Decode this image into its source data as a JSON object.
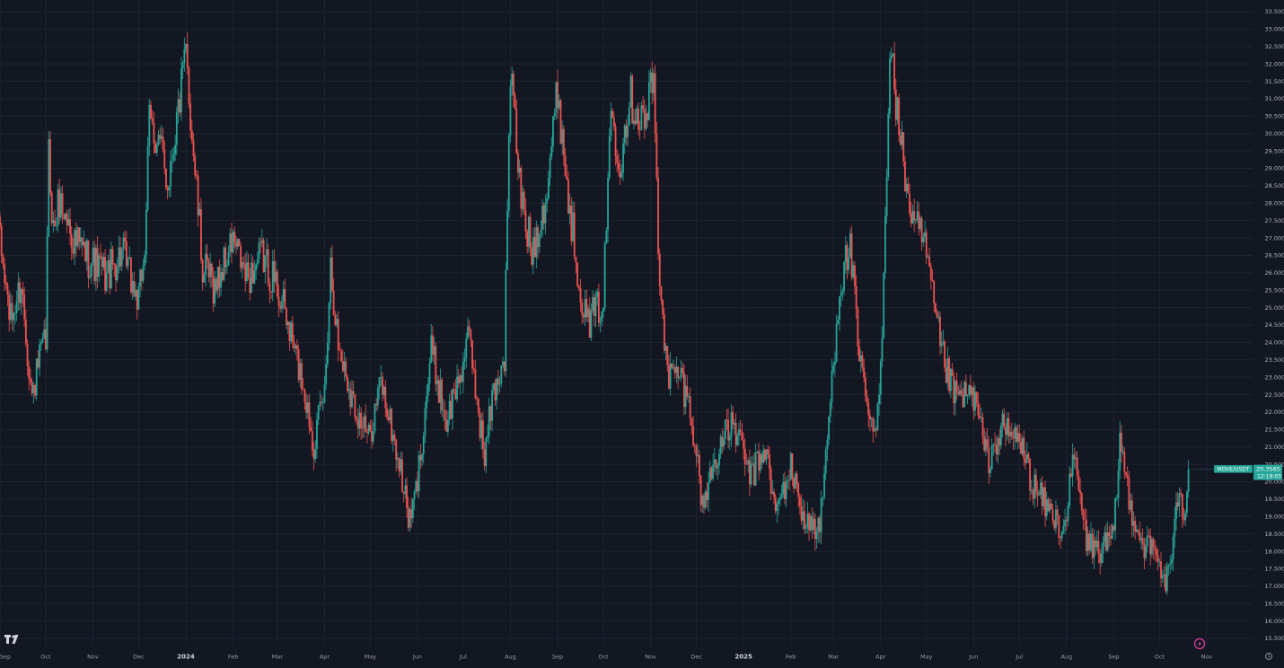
{
  "chart_data": {
    "type": "candlestick",
    "symbol": "MOVE/USDT",
    "last_price": "20.3565",
    "countdown": "12:19:03",
    "ylim": [
      15.5,
      33.5
    ],
    "y_ticks": [
      "15.5000",
      "16.0000",
      "16.5000",
      "17.0000",
      "17.5000",
      "18.0000",
      "18.5000",
      "19.0000",
      "19.5000",
      "20.0000",
      "20.5000",
      "21.0000",
      "21.5000",
      "22.0000",
      "22.5000",
      "23.0000",
      "23.5000",
      "24.0000",
      "24.5000",
      "25.0000",
      "25.5000",
      "26.0000",
      "26.5000",
      "27.0000",
      "27.5000",
      "28.0000",
      "28.5000",
      "29.0000",
      "29.5000",
      "30.0000",
      "30.5000",
      "31.0000",
      "31.5000",
      "32.0000",
      "32.5000",
      "33.0000",
      "33.5000"
    ],
    "x_range": [
      "2023-09-01",
      "2025-11-14"
    ],
    "x_ticks": [
      {
        "date": "2023-09-01",
        "label": "Sep"
      },
      {
        "date": "2023-10-01",
        "label": "Oct"
      },
      {
        "date": "2023-11-01",
        "label": "Nov"
      },
      {
        "date": "2023-12-01",
        "label": "Dec"
      },
      {
        "date": "2024-01-01",
        "label": "2024"
      },
      {
        "date": "2024-02-01",
        "label": "Feb"
      },
      {
        "date": "2024-03-01",
        "label": "Mar"
      },
      {
        "date": "2024-04-01",
        "label": "Apr"
      },
      {
        "date": "2024-05-01",
        "label": "May"
      },
      {
        "date": "2024-06-01",
        "label": "Jun"
      },
      {
        "date": "2024-07-01",
        "label": "Jul"
      },
      {
        "date": "2024-08-01",
        "label": "Aug"
      },
      {
        "date": "2024-09-01",
        "label": "Sep"
      },
      {
        "date": "2024-10-01",
        "label": "Oct"
      },
      {
        "date": "2024-11-01",
        "label": "Nov"
      },
      {
        "date": "2024-12-01",
        "label": "Dec"
      },
      {
        "date": "2025-01-01",
        "label": "2025"
      },
      {
        "date": "2025-02-01",
        "label": "Feb"
      },
      {
        "date": "2025-03-01",
        "label": "Mar"
      },
      {
        "date": "2025-04-01",
        "label": "Apr"
      },
      {
        "date": "2025-05-01",
        "label": "May"
      },
      {
        "date": "2025-06-01",
        "label": "Jun"
      },
      {
        "date": "2025-07-01",
        "label": "Jul"
      },
      {
        "date": "2025-08-01",
        "label": "Aug"
      },
      {
        "date": "2025-09-01",
        "label": "Sep"
      },
      {
        "date": "2025-10-01",
        "label": "Oct"
      },
      {
        "date": "2025-11-01",
        "label": "Nov"
      }
    ],
    "grid": true,
    "up_color": "#26a69a",
    "down_color": "#ef5350",
    "price_path": [
      {
        "date": "2023-09-01",
        "close": 26.8
      },
      {
        "date": "2023-09-08",
        "close": 24.6
      },
      {
        "date": "2023-09-15",
        "close": 25.7
      },
      {
        "date": "2023-09-22",
        "close": 22.4
      },
      {
        "date": "2023-09-27",
        "close": 23.5
      },
      {
        "date": "2023-10-01",
        "close": 24.0
      },
      {
        "date": "2023-10-03",
        "close": 29.4
      },
      {
        "date": "2023-10-06",
        "close": 27.2
      },
      {
        "date": "2023-10-10",
        "close": 28.1
      },
      {
        "date": "2023-10-20",
        "close": 26.9
      },
      {
        "date": "2023-10-30",
        "close": 26.4
      },
      {
        "date": "2023-11-10",
        "close": 25.9
      },
      {
        "date": "2023-11-20",
        "close": 26.6
      },
      {
        "date": "2023-12-01",
        "close": 25.1
      },
      {
        "date": "2023-12-05",
        "close": 26.8
      },
      {
        "date": "2023-12-08",
        "close": 30.3
      },
      {
        "date": "2023-12-14",
        "close": 29.8
      },
      {
        "date": "2023-12-20",
        "close": 28.6
      },
      {
        "date": "2024-01-01",
        "close": 32.2
      },
      {
        "date": "2024-01-06",
        "close": 29.5
      },
      {
        "date": "2024-01-12",
        "close": 26.1
      },
      {
        "date": "2024-01-20",
        "close": 25.6
      },
      {
        "date": "2024-02-01",
        "close": 26.9
      },
      {
        "date": "2024-02-10",
        "close": 25.8
      },
      {
        "date": "2024-02-20",
        "close": 26.5
      },
      {
        "date": "2024-03-01",
        "close": 25.6
      },
      {
        "date": "2024-03-08",
        "close": 24.5
      },
      {
        "date": "2024-03-18",
        "close": 22.8
      },
      {
        "date": "2024-03-25",
        "close": 21.1
      },
      {
        "date": "2024-04-01",
        "close": 22.6
      },
      {
        "date": "2024-04-05",
        "close": 26.3
      },
      {
        "date": "2024-04-10",
        "close": 23.9
      },
      {
        "date": "2024-04-20",
        "close": 22.3
      },
      {
        "date": "2024-04-30",
        "close": 21.2
      },
      {
        "date": "2024-05-08",
        "close": 22.9
      },
      {
        "date": "2024-05-20",
        "close": 20.5
      },
      {
        "date": "2024-05-27",
        "close": 18.8
      },
      {
        "date": "2024-06-01",
        "close": 20.0
      },
      {
        "date": "2024-06-10",
        "close": 23.8
      },
      {
        "date": "2024-06-20",
        "close": 21.7
      },
      {
        "date": "2024-06-27",
        "close": 22.8
      },
      {
        "date": "2024-07-05",
        "close": 24.1
      },
      {
        "date": "2024-07-15",
        "close": 20.7
      },
      {
        "date": "2024-07-20",
        "close": 22.4
      },
      {
        "date": "2024-07-28",
        "close": 23.6
      },
      {
        "date": "2024-08-01",
        "close": 31.8
      },
      {
        "date": "2024-08-08",
        "close": 28.1
      },
      {
        "date": "2024-08-15",
        "close": 26.6
      },
      {
        "date": "2024-08-25",
        "close": 28.4
      },
      {
        "date": "2024-09-01",
        "close": 31.3
      },
      {
        "date": "2024-09-08",
        "close": 28.1
      },
      {
        "date": "2024-09-14",
        "close": 26.2
      },
      {
        "date": "2024-09-20",
        "close": 24.5
      },
      {
        "date": "2024-10-01",
        "close": 25.2
      },
      {
        "date": "2024-10-06",
        "close": 30.8
      },
      {
        "date": "2024-10-12",
        "close": 29.2
      },
      {
        "date": "2024-10-18",
        "close": 31.1
      },
      {
        "date": "2024-10-28",
        "close": 30.3
      },
      {
        "date": "2024-11-03",
        "close": 31.6
      },
      {
        "date": "2024-11-06",
        "close": 26.7
      },
      {
        "date": "2024-11-12",
        "close": 23.0
      },
      {
        "date": "2024-11-20",
        "close": 23.1
      },
      {
        "date": "2024-11-28",
        "close": 21.9
      },
      {
        "date": "2024-12-05",
        "close": 19.3
      },
      {
        "date": "2024-12-15",
        "close": 20.9
      },
      {
        "date": "2024-12-25",
        "close": 21.7
      },
      {
        "date": "2025-01-06",
        "close": 20.1
      },
      {
        "date": "2025-01-15",
        "close": 21.0
      },
      {
        "date": "2025-01-22",
        "close": 19.1
      },
      {
        "date": "2025-02-01",
        "close": 20.4
      },
      {
        "date": "2025-02-10",
        "close": 18.9
      },
      {
        "date": "2025-02-20",
        "close": 18.6
      },
      {
        "date": "2025-02-28",
        "close": 22.9
      },
      {
        "date": "2025-03-05",
        "close": 25.6
      },
      {
        "date": "2025-03-12",
        "close": 26.8
      },
      {
        "date": "2025-03-18",
        "close": 23.4
      },
      {
        "date": "2025-03-28",
        "close": 21.1
      },
      {
        "date": "2025-04-01",
        "close": 23.1
      },
      {
        "date": "2025-04-04",
        "close": 27.7
      },
      {
        "date": "2025-04-07",
        "close": 32.6
      },
      {
        "date": "2025-04-14",
        "close": 29.7
      },
      {
        "date": "2025-04-22",
        "close": 27.4
      },
      {
        "date": "2025-04-30",
        "close": 26.8
      },
      {
        "date": "2025-05-05",
        "close": 25.2
      },
      {
        "date": "2025-05-12",
        "close": 23.5
      },
      {
        "date": "2025-05-20",
        "close": 22.4
      },
      {
        "date": "2025-06-01",
        "close": 22.5
      },
      {
        "date": "2025-06-10",
        "close": 20.6
      },
      {
        "date": "2025-06-20",
        "close": 21.5
      },
      {
        "date": "2025-07-01",
        "close": 21.2
      },
      {
        "date": "2025-07-10",
        "close": 19.9
      },
      {
        "date": "2025-07-20",
        "close": 19.2
      },
      {
        "date": "2025-07-30",
        "close": 18.6
      },
      {
        "date": "2025-08-06",
        "close": 20.7
      },
      {
        "date": "2025-08-14",
        "close": 18.3
      },
      {
        "date": "2025-08-22",
        "close": 18.0
      },
      {
        "date": "2025-09-01",
        "close": 18.4
      },
      {
        "date": "2025-09-05",
        "close": 21.2
      },
      {
        "date": "2025-09-12",
        "close": 19.3
      },
      {
        "date": "2025-09-20",
        "close": 18.2
      },
      {
        "date": "2025-09-28",
        "close": 18.0
      },
      {
        "date": "2025-10-05",
        "close": 17.1
      },
      {
        "date": "2025-10-10",
        "close": 18.1
      },
      {
        "date": "2025-10-14",
        "close": 20.0
      },
      {
        "date": "2025-10-17",
        "close": 19.0
      },
      {
        "date": "2025-10-20",
        "close": 20.36
      }
    ]
  }
}
